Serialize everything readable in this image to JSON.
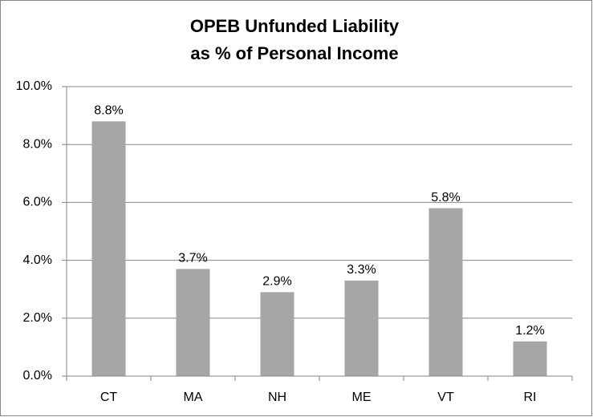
{
  "chart_data": {
    "type": "bar",
    "title": [
      "OPEB Unfunded Liability",
      "as % of Personal Income"
    ],
    "categories": [
      "CT",
      "MA",
      "NH",
      "ME",
      "VT",
      "RI"
    ],
    "values": [
      8.8,
      3.7,
      2.9,
      3.3,
      5.8,
      1.2
    ],
    "value_labels": [
      "8.8%",
      "3.7%",
      "2.9%",
      "3.3%",
      "5.8%",
      "1.2%"
    ],
    "color": "#a6a6a6",
    "ylim": [
      0,
      10
    ],
    "yticks": [
      {
        "value": 0,
        "label": "0.0%"
      },
      {
        "value": 2,
        "label": "2.0%"
      },
      {
        "value": 4,
        "label": "4.0%"
      },
      {
        "value": 6,
        "label": "6.0%"
      },
      {
        "value": 8,
        "label": "8.0%"
      },
      {
        "value": 10,
        "label": "10.0%"
      }
    ],
    "grid": true
  }
}
